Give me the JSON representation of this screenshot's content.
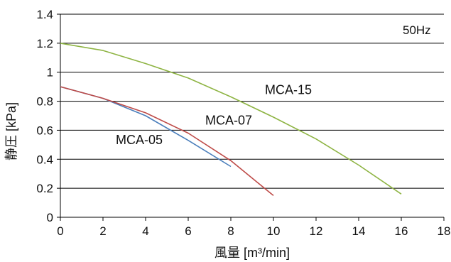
{
  "chart_data": {
    "type": "line",
    "title": "",
    "annotation": "50Hz",
    "xlabel": "風量 [m³/min]",
    "ylabel": "静圧 [kPa]",
    "xlim": [
      0,
      18
    ],
    "ylim": [
      0,
      1.4
    ],
    "x_ticks": [
      "0",
      "2",
      "4",
      "6",
      "8",
      "10",
      "12",
      "14",
      "16",
      "18"
    ],
    "y_ticks": [
      "0",
      "0.2",
      "0.4",
      "0.6",
      "0.8",
      "1",
      "1.2",
      "1.4"
    ],
    "grid": "horizontal",
    "series": [
      {
        "name": "MCA-05",
        "color": "#4a7ebb",
        "points": [
          [
            0,
            0.9
          ],
          [
            2,
            0.82
          ],
          [
            4,
            0.7
          ],
          [
            6,
            0.53
          ],
          [
            8,
            0.35
          ]
        ]
      },
      {
        "name": "MCA-07",
        "color": "#be4b48",
        "points": [
          [
            0,
            0.9
          ],
          [
            2,
            0.82
          ],
          [
            4,
            0.72
          ],
          [
            6,
            0.58
          ],
          [
            8,
            0.39
          ],
          [
            10,
            0.15
          ]
        ]
      },
      {
        "name": "MCA-15",
        "color": "#8eb443",
        "points": [
          [
            0,
            1.2
          ],
          [
            2,
            1.15
          ],
          [
            4,
            1.06
          ],
          [
            6,
            0.96
          ],
          [
            8,
            0.83
          ],
          [
            10,
            0.69
          ],
          [
            12,
            0.54
          ],
          [
            14,
            0.36
          ],
          [
            16,
            0.16
          ]
        ]
      }
    ]
  }
}
